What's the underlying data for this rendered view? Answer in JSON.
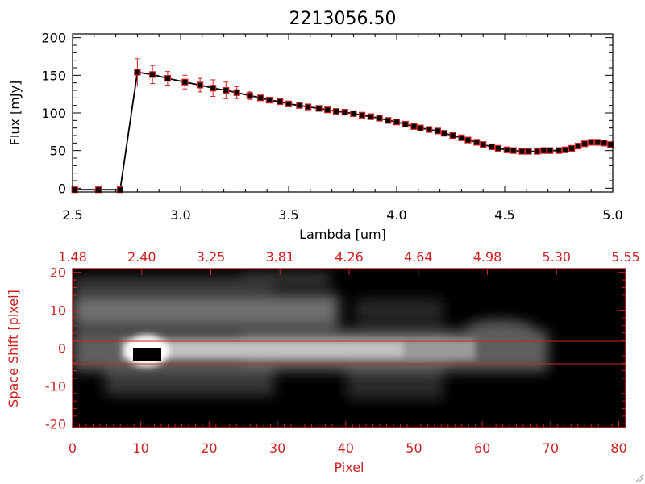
{
  "chart_data": [
    {
      "type": "line",
      "title": "2213056.50",
      "xlabel": "Lambda [um]",
      "ylabel": "Flux [mJy]",
      "xlim": [
        2.5,
        5.0
      ],
      "ylim": [
        -5,
        205
      ],
      "xticks": [
        "2.5",
        "3.0",
        "3.5",
        "4.0",
        "4.5",
        "5.0"
      ],
      "yticks": [
        "0",
        "50",
        "100",
        "150",
        "200"
      ],
      "grid": false,
      "line_color": "#000000",
      "marker_color": "#cc2222",
      "x": [
        2.51,
        2.62,
        2.72,
        2.8,
        2.87,
        2.94,
        3.02,
        3.09,
        3.15,
        3.21,
        3.26,
        3.32,
        3.37,
        3.41,
        3.46,
        3.5,
        3.55,
        3.59,
        3.64,
        3.68,
        3.72,
        3.76,
        3.8,
        3.84,
        3.88,
        3.92,
        3.96,
        4.0,
        4.04,
        4.08,
        4.11,
        4.15,
        4.19,
        4.22,
        4.26,
        4.3,
        4.33,
        4.37,
        4.4,
        4.44,
        4.47,
        4.51,
        4.54,
        4.58,
        4.61,
        4.65,
        4.68,
        4.71,
        4.75,
        4.78,
        4.81,
        4.84,
        4.87,
        4.9,
        4.93,
        4.96,
        4.99
      ],
      "y": [
        -2,
        -2,
        -2,
        154,
        151,
        146,
        141,
        137,
        133,
        130,
        127,
        123,
        120,
        117,
        115,
        112,
        110,
        108,
        106,
        104,
        102,
        101,
        99,
        97,
        95,
        93,
        90,
        88,
        85,
        82,
        80,
        78,
        76,
        73,
        70,
        67,
        64,
        61,
        58,
        55,
        53,
        51,
        50,
        49,
        49,
        49,
        50,
        50,
        50,
        51,
        53,
        56,
        59,
        61,
        61,
        60,
        58
      ],
      "err": [
        0,
        0,
        0,
        18,
        12,
        9,
        9,
        9,
        11,
        11,
        8,
        5,
        3,
        2,
        2,
        2,
        2,
        2,
        2,
        2,
        2,
        2,
        2,
        2,
        2,
        2,
        2,
        2,
        2,
        2,
        2,
        2,
        2,
        2,
        2,
        2,
        2,
        2,
        2,
        2,
        2,
        2,
        2,
        2,
        2,
        2,
        2,
        2,
        2,
        2,
        2,
        2,
        2,
        2,
        2,
        2,
        2
      ]
    },
    {
      "type": "heatmap",
      "xlabel": "Pixel",
      "ylabel": "Space Shift [pixel]",
      "xlim": [
        0,
        81
      ],
      "ylim": [
        -21,
        21
      ],
      "xticks": [
        "0",
        "10",
        "20",
        "30",
        "40",
        "50",
        "60",
        "70",
        "80"
      ],
      "yticks": [
        "-20",
        "-10",
        "0",
        "10",
        "20"
      ],
      "top_axis_ticks": [
        "1.48",
        "2.40",
        "3.25",
        "3.81",
        "4.26",
        "4.64",
        "4.98",
        "5.30",
        "5.55"
      ],
      "aperture_lines": [
        3,
        -3
      ],
      "colormap": "grayscale",
      "axis_color": "#cc2222"
    }
  ]
}
